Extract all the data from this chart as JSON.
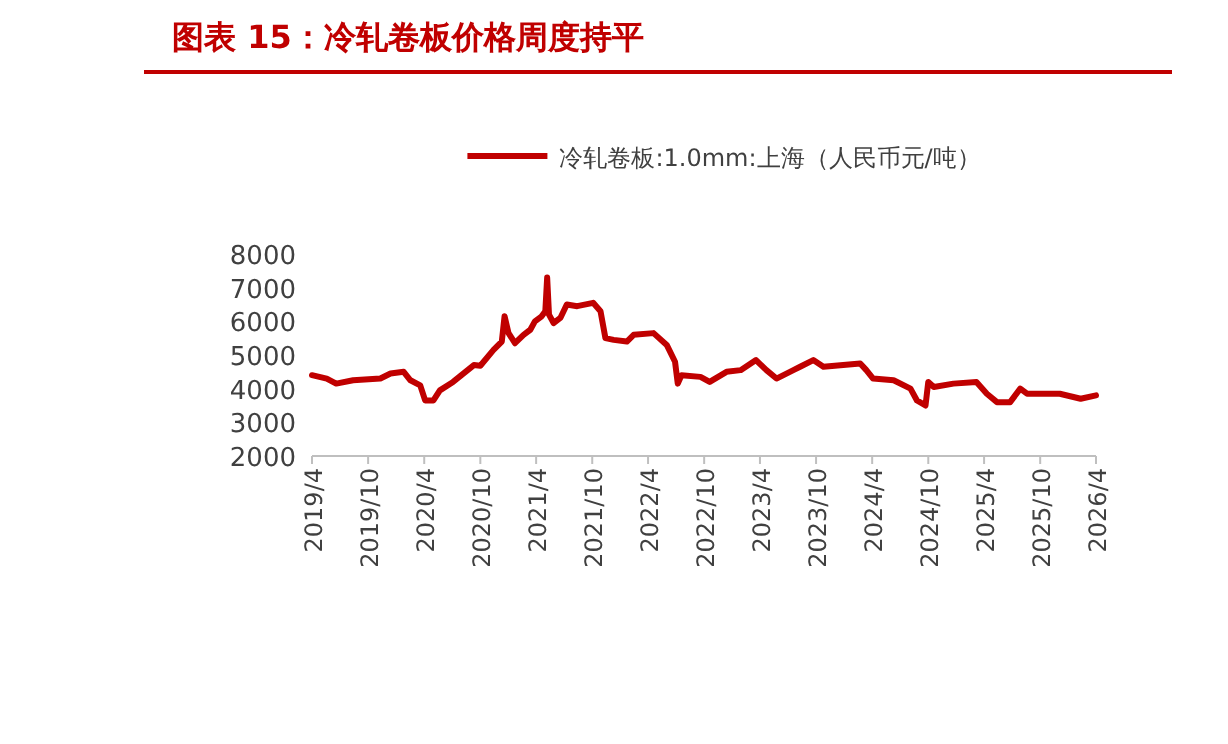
{
  "chart_data": {
    "type": "line",
    "title": "图表 15：冷轧卷板价格周度持平",
    "legend": "top",
    "x": [
      "2019-04-01",
      "2019-05-19",
      "2019-06-19",
      "2019-08-13",
      "2019-11-10",
      "2019-12-13",
      "2020-01-25",
      "2020-02-16",
      "2020-03-19",
      "2020-04-04",
      "2020-05-01",
      "2020-05-22",
      "2020-07-04",
      "2020-09-10",
      "2020-10-01",
      "2020-11-13",
      "2020-12-10",
      "2020-12-19",
      "2021-01-01",
      "2021-01-22",
      "2021-02-19",
      "2021-03-13",
      "2021-03-28",
      "2021-04-19",
      "2021-05-01",
      "2021-05-07",
      "2021-05-13",
      "2021-05-28",
      "2021-06-19",
      "2021-07-10",
      "2021-08-13",
      "2021-10-04",
      "2021-10-28",
      "2021-11-13",
      "2021-12-10",
      "2022-01-22",
      "2022-02-13",
      "2022-04-19",
      "2022-06-01",
      "2022-06-28",
      "2022-07-07",
      "2022-07-19",
      "2022-09-19",
      "2022-10-19",
      "2022-12-13",
      "2023-01-28",
      "2023-03-19",
      "2023-04-22",
      "2023-05-25",
      "2023-07-19",
      "2023-08-10",
      "2023-09-22",
      "2023-10-25",
      "2024-02-22",
      "2024-03-13",
      "2024-04-04",
      "2024-06-10",
      "2024-08-04",
      "2024-08-25",
      "2024-09-22",
      "2024-10-01",
      "2024-10-19",
      "2024-12-22",
      "2025-03-07",
      "2025-04-10",
      "2025-05-13",
      "2025-06-25",
      "2025-07-28",
      "2025-08-19",
      "2025-12-04",
      "2026-02-10",
      "2026-04-01"
    ],
    "series": [
      {
        "name": "冷轧卷板:1.0mm:上海（人民币元/吨）",
        "color": "#c00000",
        "values": [
          4400,
          4300,
          4150,
          4250,
          4300,
          4450,
          4500,
          4250,
          4100,
          3650,
          3650,
          3950,
          4200,
          4700,
          4680,
          5150,
          5400,
          6150,
          5650,
          5350,
          5600,
          5750,
          6000,
          6150,
          6300,
          7300,
          6200,
          5950,
          6100,
          6500,
          6450,
          6550,
          6300,
          5500,
          5450,
          5400,
          5600,
          5650,
          5300,
          4800,
          4150,
          4400,
          4350,
          4200,
          4500,
          4550,
          4850,
          4550,
          4300,
          4550,
          4650,
          4850,
          4650,
          4750,
          4550,
          4300,
          4250,
          4000,
          3650,
          3500,
          4200,
          4050,
          4150,
          4200,
          3850,
          3600,
          3600,
          4000,
          3850,
          3850,
          3700,
          3800
        ]
      }
    ],
    "ylim": [
      2000,
      8000
    ],
    "yticks": [
      2000,
      3000,
      4000,
      5000,
      6000,
      7000,
      8000
    ],
    "xlim": [
      "2019-04-01",
      "2026-04-01"
    ],
    "xticks": [
      {
        "value": "2019-04-01",
        "label": "2019/4"
      },
      {
        "value": "2019-10-01",
        "label": "2019/10"
      },
      {
        "value": "2020-04-01",
        "label": "2020/4"
      },
      {
        "value": "2020-10-01",
        "label": "2020/10"
      },
      {
        "value": "2021-04-01",
        "label": "2021/4"
      },
      {
        "value": "2021-10-01",
        "label": "2021/10"
      },
      {
        "value": "2022-04-01",
        "label": "2022/4"
      },
      {
        "value": "2022-10-01",
        "label": "2022/10"
      },
      {
        "value": "2023-04-01",
        "label": "2023/4"
      },
      {
        "value": "2023-10-01",
        "label": "2023/10"
      },
      {
        "value": "2024-04-01",
        "label": "2024/4"
      },
      {
        "value": "2024-10-01",
        "label": "2024/10"
      },
      {
        "value": "2025-04-01",
        "label": "2025/4"
      },
      {
        "value": "2025-10-01",
        "label": "2025/10"
      },
      {
        "value": "2026-04-01",
        "label": "2026/4"
      }
    ]
  }
}
